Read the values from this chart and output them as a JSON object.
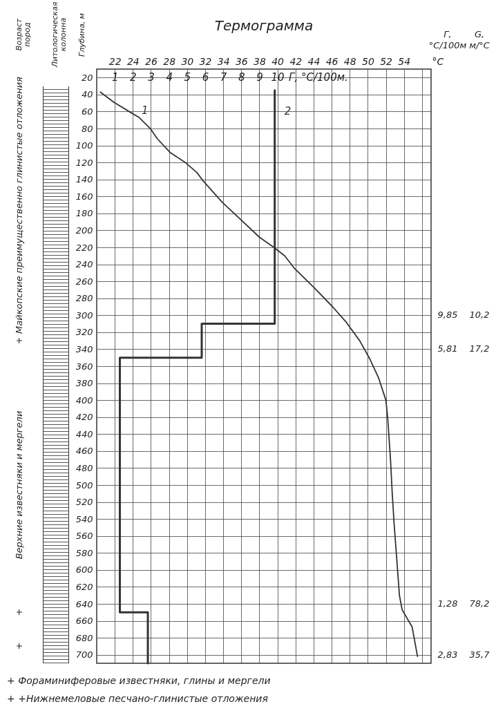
{
  "chart_data": {
    "type": "line",
    "title": "Термограмма",
    "xlabel": "°C",
    "ylabel": "Глубина, м",
    "x2label": "Г, °C/100м.",
    "xlim": [
      20,
      57
    ],
    "xticks": [
      22,
      24,
      26,
      28,
      30,
      32,
      34,
      36,
      38,
      40,
      42,
      44,
      46,
      48,
      50,
      52,
      54,
      {
        "value": 56,
        "label": null
      }
    ],
    "x2lim": [
      0,
      18.5
    ],
    "x2ticks": [
      1,
      2,
      3,
      4,
      5,
      6,
      7,
      8,
      9,
      10
    ],
    "ylim": [
      710,
      10
    ],
    "yticks": [
      20,
      40,
      60,
      80,
      100,
      120,
      140,
      160,
      180,
      200,
      220,
      240,
      260,
      280,
      300,
      320,
      340,
      360,
      380,
      400,
      420,
      440,
      460,
      480,
      500,
      520,
      540,
      560,
      580,
      600,
      620,
      640,
      660,
      680,
      700
    ],
    "grid": true,
    "series": [
      {
        "name": "1",
        "color": "#333333",
        "x": [
          20.4,
          21.9,
          23.9,
          24.7,
          26.0,
          26.7,
          28.1,
          29.8,
          31.1,
          31.8,
          33.9,
          35.9,
          38.0,
          39.6,
          40.8,
          41.9,
          44.1,
          46.1,
          47.6,
          49.1,
          50.2,
          51.2,
          52.0,
          52.2,
          52.5,
          52.7,
          52.9,
          53.2,
          53.5,
          53.8,
          54.9,
          55.5
        ],
        "values": [
          37,
          49,
          62,
          67,
          81,
          92,
          108,
          120,
          132,
          142,
          167,
          187,
          208,
          220,
          230,
          245,
          268,
          290,
          308,
          330,
          351,
          374,
          400,
          421,
          468,
          509,
          544,
          587,
          630,
          647,
          667,
          702
        ]
      },
      {
        "name": "2",
        "color": "#333333",
        "axis": "x2",
        "x": [
          9.85,
          9.85,
          5.81,
          5.81,
          1.28,
          1.28,
          2.83,
          2.83
        ],
        "values": [
          35,
          310,
          310,
          350,
          350,
          650,
          650,
          710
        ]
      }
    ],
    "annotations": [
      "Возраст пород",
      "Литологическая колонна",
      "Г, °C/100м",
      "G, м/°C",
      "Майкопские преимущественно глинистые отложения",
      "+",
      "Верхние известняки и мергели",
      "+",
      "+",
      "9,85",
      "10,2",
      "5,81",
      "17,2",
      "1,28",
      "78,2",
      "2,83",
      "35,7",
      "+ Фораминиферовые известняки, глины и мергели",
      "+ +Нижнемеловые песчано-глинистые отложения"
    ]
  }
}
